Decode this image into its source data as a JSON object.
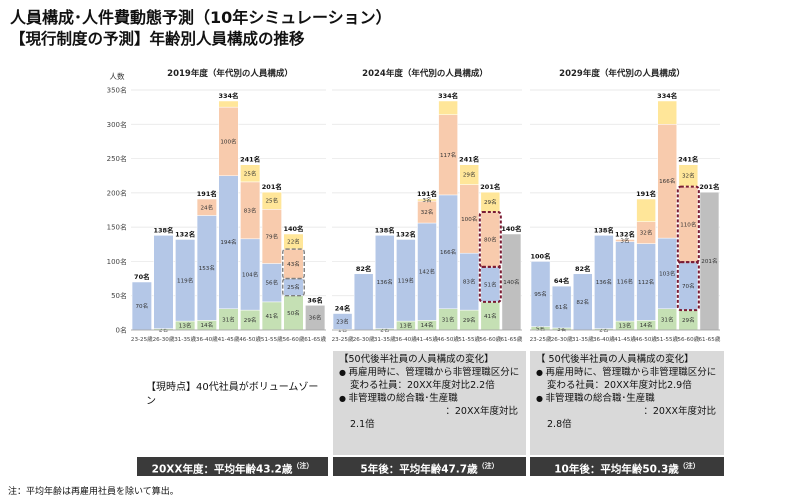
{
  "title": "人員構成･人件費動態予測（10年シミュレーション）",
  "subtitle": "【現行制度の予測】年齢別人員構成の推移",
  "colors": {
    "blue": "#b4c7e7",
    "peach": "#f8cbad",
    "yellow": "#ffe699",
    "green": "#c5e0b4",
    "grey": "#bfbfbf",
    "dark_band": "#3a3a3a",
    "box_grey": "#d9d9d9",
    "dash_grey": "#7f7f7f",
    "dash_red": "#7b1c34"
  },
  "chart_data": [
    {
      "type": "bar",
      "stacked": true,
      "title": "2019年度（年代別の人員構成）",
      "ylabel": "人数",
      "ylim": [
        0,
        350
      ],
      "yticks": [
        "0名",
        "50名",
        "100名",
        "150名",
        "200名",
        "250名",
        "300名",
        "350名"
      ],
      "categories": [
        "23-25歳",
        "26-30歳",
        "31-35歳",
        "36-40歳",
        "41-45歳",
        "46-50歳",
        "51-55歳",
        "56-60歳",
        "61-65歳"
      ],
      "totals": [
        70,
        138,
        132,
        191,
        334,
        241,
        201,
        140,
        36
      ],
      "total_labels": [
        "70名",
        "138名",
        "132名",
        "191名",
        "334名",
        "241名",
        "201名",
        "140名",
        "36名"
      ],
      "segments": [
        {
          "color": "green",
          "values": [
            0,
            2,
            13,
            14,
            31,
            29,
            41,
            50,
            0
          ],
          "labels": [
            "",
            "2名",
            "13名",
            "14名",
            "31名",
            "29名",
            "41名",
            "50名",
            ""
          ]
        },
        {
          "color": "blue",
          "values": [
            70,
            136,
            119,
            153,
            194,
            104,
            56,
            25,
            0
          ],
          "labels": [
            "70名",
            "",
            "119名",
            "153名",
            "194名",
            "104名",
            "56名",
            "25名",
            ""
          ]
        },
        {
          "color": "peach",
          "values": [
            0,
            0,
            0,
            24,
            100,
            83,
            79,
            43,
            0
          ],
          "labels": [
            "",
            "",
            "",
            "24名",
            "100名",
            "83名",
            "79名",
            "43名",
            ""
          ]
        },
        {
          "color": "yellow",
          "values": [
            0,
            0,
            0,
            0,
            9,
            25,
            25,
            22,
            0
          ],
          "labels": [
            "",
            "",
            "",
            "",
            "",
            "25名",
            "25名",
            "22名",
            ""
          ]
        },
        {
          "color": "grey",
          "values": [
            0,
            0,
            0,
            0,
            0,
            0,
            0,
            0,
            36
          ],
          "labels": [
            "",
            "",
            "",
            "",
            "",
            "",
            "",
            "",
            "36名"
          ]
        }
      ],
      "highlights": [
        {
          "category": 7,
          "from": 50,
          "to": 75,
          "style": "dash_grey"
        },
        {
          "category": 7,
          "from": 75,
          "to": 118,
          "style": "dash_grey"
        }
      ]
    },
    {
      "type": "bar",
      "stacked": true,
      "title": "2024年度（年代別の人員構成）",
      "ylim": [
        0,
        350
      ],
      "categories": [
        "23-25歳",
        "26-30歳",
        "31-35歳",
        "36-40歳",
        "41-45歳",
        "46-50歳",
        "51-55歳",
        "56-60歳",
        "61-65歳"
      ],
      "totals": [
        24,
        82,
        138,
        132,
        191,
        334,
        241,
        201,
        140
      ],
      "total_labels": [
        "24名",
        "82名",
        "138名",
        "132名",
        "191名",
        "334名",
        "241名",
        "201名",
        "140名"
      ],
      "segments": [
        {
          "color": "green",
          "values": [
            1,
            0,
            2,
            13,
            14,
            31,
            29,
            41,
            0
          ],
          "labels": [
            "1名",
            "",
            "2名",
            "13名",
            "14名",
            "31名",
            "29名",
            "41名",
            ""
          ]
        },
        {
          "color": "blue",
          "values": [
            23,
            82,
            136,
            119,
            142,
            166,
            83,
            51,
            0
          ],
          "labels": [
            "23名",
            "",
            "136名",
            "119名",
            "142名",
            "166名",
            "83名",
            "51名",
            ""
          ]
        },
        {
          "color": "peach",
          "values": [
            0,
            0,
            0,
            0,
            32,
            117,
            100,
            80,
            0
          ],
          "labels": [
            "",
            "",
            "",
            "",
            "32名",
            "117名",
            "100名",
            "80名",
            ""
          ]
        },
        {
          "color": "yellow",
          "values": [
            0,
            0,
            0,
            0,
            3,
            20,
            29,
            29,
            0
          ],
          "labels": [
            "",
            "",
            "",
            "",
            "3名",
            "",
            "29名",
            "29名",
            ""
          ]
        },
        {
          "color": "grey",
          "values": [
            0,
            0,
            0,
            0,
            0,
            0,
            0,
            0,
            140
          ],
          "labels": [
            "",
            "",
            "",
            "",
            "",
            "",
            "",
            "",
            "140名"
          ]
        }
      ],
      "highlights": [
        {
          "category": 7,
          "from": 41,
          "to": 92,
          "style": "dash_red"
        },
        {
          "category": 7,
          "from": 92,
          "to": 172,
          "style": "dash_red"
        }
      ]
    },
    {
      "type": "bar",
      "stacked": true,
      "title": "2029年度（年代別の人員構成）",
      "ylim": [
        0,
        350
      ],
      "categories": [
        "23-25歳",
        "26-30歳",
        "31-35歳",
        "36-40歳",
        "41-45歳",
        "46-50歳",
        "51-55歳",
        "56-60歳",
        "61-65歳"
      ],
      "totals": [
        100,
        64,
        82,
        138,
        132,
        191,
        334,
        241,
        201
      ],
      "total_labels": [
        "100名",
        "64名",
        "82名",
        "138名",
        "132名",
        "191名",
        "334名",
        "241名",
        "201名"
      ],
      "segments": [
        {
          "color": "green",
          "values": [
            5,
            3,
            0,
            2,
            13,
            14,
            31,
            29,
            0
          ],
          "labels": [
            "5名",
            "3名",
            "",
            "2名",
            "13名",
            "14名",
            "31名",
            "29名",
            ""
          ]
        },
        {
          "color": "blue",
          "values": [
            95,
            61,
            82,
            136,
            116,
            112,
            103,
            70,
            0
          ],
          "labels": [
            "95名",
            "61名",
            "82名",
            "136名",
            "116名",
            "112名",
            "103名",
            "70名",
            ""
          ]
        },
        {
          "color": "peach",
          "values": [
            0,
            0,
            0,
            0,
            3,
            32,
            166,
            110,
            0
          ],
          "labels": [
            "",
            "",
            "",
            "",
            "3名",
            "32名",
            "166名",
            "110名",
            ""
          ]
        },
        {
          "color": "yellow",
          "values": [
            0,
            0,
            0,
            0,
            0,
            33,
            34,
            32,
            0
          ],
          "labels": [
            "",
            "",
            "",
            "",
            "",
            "",
            "",
            "32名",
            ""
          ]
        },
        {
          "color": "grey",
          "values": [
            0,
            0,
            0,
            0,
            0,
            0,
            0,
            0,
            201
          ],
          "labels": [
            "",
            "",
            "",
            "",
            "",
            "",
            "",
            "",
            "201名"
          ]
        }
      ],
      "highlights": [
        {
          "category": 7,
          "from": 29,
          "to": 99,
          "style": "dash_red"
        },
        {
          "category": 7,
          "from": 99,
          "to": 209,
          "style": "dash_red"
        }
      ]
    }
  ],
  "current_note": "【現時点】40代社員がボリュームゾーン",
  "box_5y": {
    "head": "【50代後半社員の人員構成の変化】",
    "b1": "再雇用時に、管理職から非管理職区分に",
    "b1_sub": "変わる社員：20XX年度対比2.2倍",
    "b2": "非管理職の総合職･生産職",
    "b2_sub": "：20XX年度対比",
    "b2_val": "2.1倍"
  },
  "box_10y": {
    "head": "【 50代後半社員の人員構成の変化】",
    "b1": "再雇用時に、管理職から非管理職区分に",
    "b1_sub": "変わる社員：20XX年度対比2.9倍",
    "b2": "非管理職の総合職･生産職",
    "b2_sub": "：20XX年度対比",
    "b2_val": "2.8倍"
  },
  "bands": [
    {
      "text": "20XX年度：平均年齢43.2歳",
      "note": "（注）"
    },
    {
      "text": "5年後：平均年齢47.7歳",
      "note": "（注）"
    },
    {
      "text": "10年後：平均年齢50.3歳",
      "note": "（注）"
    }
  ],
  "footnote": "注：平均年齢は再雇用社員を除いて算出。"
}
